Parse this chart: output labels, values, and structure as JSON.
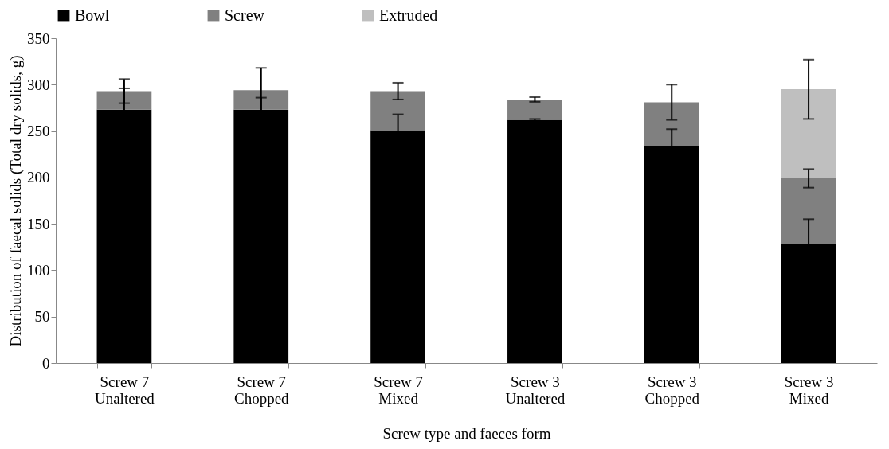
{
  "chart_data": {
    "type": "bar",
    "stacked": true,
    "xlabel": "Screw type and faeces  form",
    "ylabel": "Distribution of faecal solids (Total dry solids, g)",
    "categories": [
      "Screw 7\nUnaltered",
      "Screw 7\nChopped",
      "Screw 7\nMixed",
      "Screw 3\nUnaltered",
      "Screw 3\nChopped",
      "Screw 3\nMixed"
    ],
    "series": [
      {
        "name": "Bowl",
        "color": "#000000",
        "values": [
          273,
          273,
          251,
          262,
          234,
          128
        ],
        "errors": [
          23,
          13,
          17,
          1,
          18,
          27
        ]
      },
      {
        "name": "Screw",
        "color": "#808080",
        "values": [
          20,
          21,
          42,
          22,
          47,
          71
        ],
        "errors": [
          13,
          24,
          9,
          2.5,
          19,
          10
        ]
      },
      {
        "name": "Extruded",
        "color": "#bfbfbf",
        "values": [
          null,
          null,
          null,
          null,
          null,
          96
        ],
        "errors": [
          null,
          null,
          null,
          null,
          null,
          32
        ]
      }
    ],
    "ylim": [
      0,
      350
    ],
    "yticks": [
      0,
      50,
      100,
      150,
      200,
      250,
      300,
      350
    ],
    "grid": false,
    "legend": "top"
  }
}
